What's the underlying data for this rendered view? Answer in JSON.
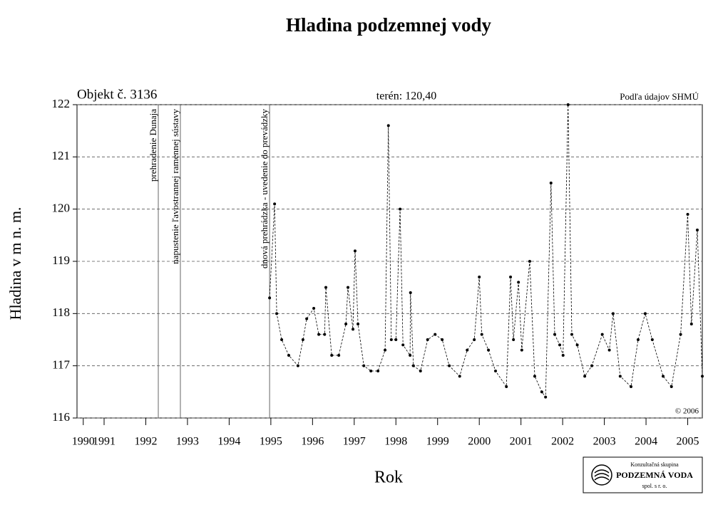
{
  "chart_data": {
    "type": "line",
    "title": "Hladina podzemnej vody",
    "object_label": "Objekt č. 3136",
    "terrain_label": "terén: 120,40",
    "source": "Podľa údajov SHMÚ",
    "copyright": "© 2006",
    "y_label": "Hladina v m n. m.",
    "x_label": "Rok",
    "logo": {
      "line1": "Konzultačná skupina",
      "line2": "PODZEMNÁ VODA",
      "line3": "spol. s r. o."
    },
    "events": [
      {
        "x": 1992.8,
        "label": "prehradenie Dunaja"
      },
      {
        "x": 1993.33,
        "label": "napustenie ľavostrannej ramennej sústavy"
      },
      {
        "x": 1995.47,
        "label": "dnová prehrádzka - uvedenie do prevádzky"
      }
    ],
    "xlim": [
      1990.85,
      2005.85
    ],
    "xticks": [
      {
        "value": 1991.0,
        "label": "1990"
      },
      {
        "value": 1991.5,
        "label": "1991"
      },
      {
        "value": 1992.5,
        "label": "1992"
      },
      {
        "value": 1993.5,
        "label": "1993"
      },
      {
        "value": 1994.5,
        "label": "1994"
      },
      {
        "value": 1995.5,
        "label": "1995"
      },
      {
        "value": 1996.5,
        "label": "1996"
      },
      {
        "value": 1997.5,
        "label": "1997"
      },
      {
        "value": 1998.5,
        "label": "1998"
      },
      {
        "value": 1999.5,
        "label": "1999"
      },
      {
        "value": 2000.5,
        "label": "2000"
      },
      {
        "value": 2001.5,
        "label": "2001"
      },
      {
        "value": 2002.5,
        "label": "2002"
      },
      {
        "value": 2003.5,
        "label": "2003"
      },
      {
        "value": 2004.5,
        "label": "2004"
      },
      {
        "value": 2005.5,
        "label": "2005"
      }
    ],
    "ylim": [
      116,
      122
    ],
    "yticks": [
      116,
      117,
      118,
      119,
      120,
      121,
      122
    ],
    "grid": true,
    "series": [
      {
        "name": "Hladina",
        "color": "#000000",
        "x": [
          1995.47,
          1995.59,
          1995.64,
          1995.76,
          1995.93,
          1996.15,
          1996.27,
          1996.36,
          1996.53,
          1996.65,
          1996.79,
          1996.82,
          1996.96,
          1997.13,
          1997.3,
          1997.35,
          1997.47,
          1997.52,
          1997.59,
          1997.73,
          1997.9,
          1998.07,
          1998.24,
          1998.32,
          1998.39,
          1998.5,
          1998.6,
          1998.67,
          1998.84,
          1998.85,
          1998.92,
          1999.09,
          1999.26,
          1999.44,
          1999.61,
          1999.78,
          2000.03,
          2000.21,
          2000.38,
          2000.5,
          2000.56,
          2000.72,
          2000.89,
          2001.15,
          2001.25,
          2001.32,
          2001.44,
          2001.52,
          2001.71,
          2001.83,
          2002.0,
          2002.09,
          2002.22,
          2002.31,
          2002.43,
          2002.51,
          2002.63,
          2002.72,
          2002.85,
          2003.03,
          2003.2,
          2003.45,
          2003.62,
          2003.71,
          2003.88,
          2004.14,
          2004.31,
          2004.48,
          2004.65,
          2004.91,
          2005.11,
          2005.33,
          2005.5,
          2005.59,
          2005.73,
          2005.85
        ],
        "values": [
          118.3,
          120.1,
          118.0,
          117.5,
          117.2,
          117.0,
          117.5,
          117.9,
          118.1,
          117.6,
          117.6,
          118.5,
          117.2,
          117.2,
          117.8,
          118.5,
          117.7,
          119.2,
          117.8,
          117.0,
          116.9,
          116.9,
          117.3,
          121.6,
          117.5,
          117.5,
          120.0,
          117.4,
          117.2,
          118.4,
          117.0,
          116.9,
          117.5,
          117.6,
          117.5,
          117.0,
          116.8,
          117.3,
          117.5,
          118.7,
          117.6,
          117.3,
          116.9,
          116.6,
          118.7,
          117.5,
          118.6,
          117.3,
          119.0,
          116.8,
          116.5,
          116.4,
          120.5,
          117.6,
          117.4,
          117.2,
          122.0,
          117.6,
          117.4,
          116.8,
          117.0,
          117.6,
          117.3,
          118.0,
          116.8,
          116.6,
          117.5,
          118.0,
          117.5,
          116.8,
          116.6,
          117.6,
          119.9,
          117.8,
          119.6,
          116.8
        ]
      }
    ]
  }
}
